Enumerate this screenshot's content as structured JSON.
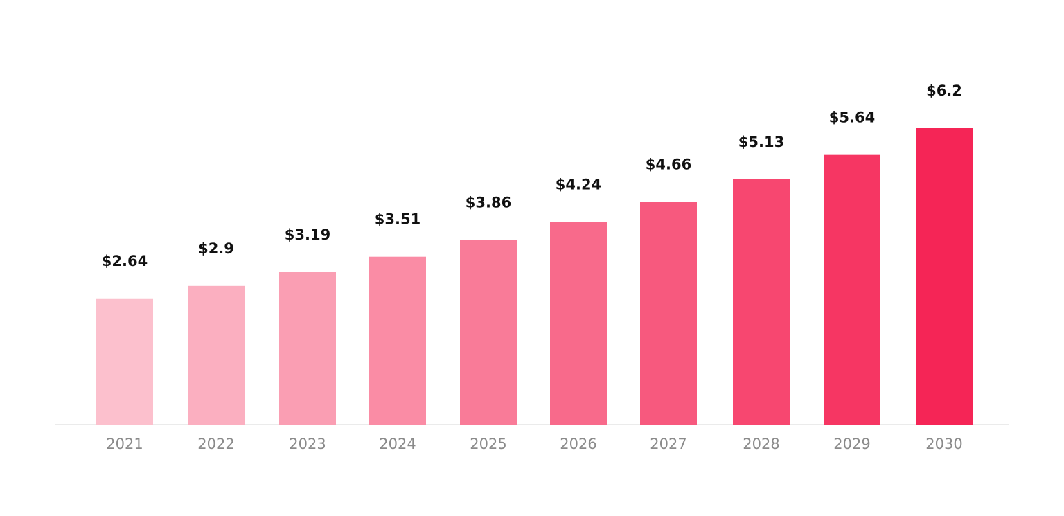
{
  "chart_data": {
    "type": "bar",
    "categories": [
      "2021",
      "2022",
      "2023",
      "2024",
      "2025",
      "2026",
      "2027",
      "2028",
      "2029",
      "2030"
    ],
    "values": [
      2.64,
      2.9,
      3.19,
      3.51,
      3.86,
      4.24,
      4.66,
      5.13,
      5.64,
      6.2
    ],
    "data_labels": [
      "$2.64",
      "$2.9",
      "$3.19",
      "$3.51",
      "$3.86",
      "$4.24",
      "$4.66",
      "$5.13",
      "$5.64",
      "$6.2"
    ],
    "title": "",
    "xlabel": "",
    "ylabel": "",
    "grid": false,
    "legend": "none",
    "colors": {
      "bar_start": "#fcc0cd",
      "bar_end": "#f52556",
      "baseline": "#ebebeb",
      "value_text": "#111111",
      "tick_text": "#8a8a8a"
    }
  }
}
